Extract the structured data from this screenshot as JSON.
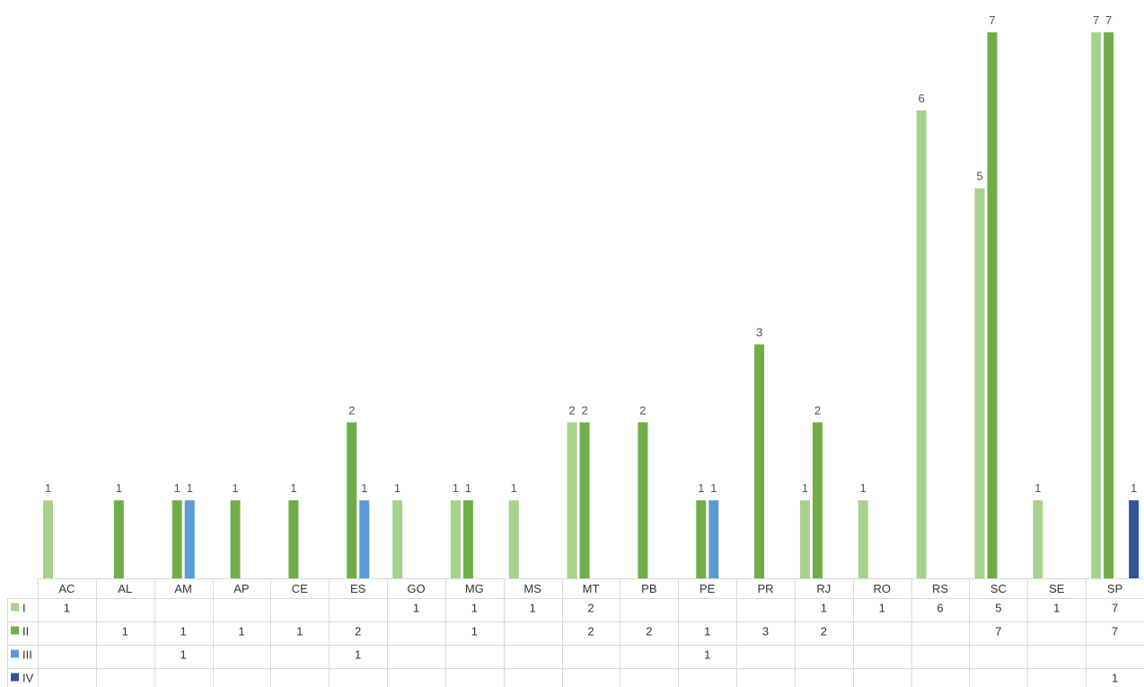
{
  "chart_data": {
    "type": "bar",
    "title": "",
    "xlabel": "",
    "ylabel": "",
    "ylim": [
      0,
      7
    ],
    "grid": false,
    "legend": "data-table-left",
    "categories": [
      "AC",
      "AL",
      "AM",
      "AP",
      "CE",
      "ES",
      "GO",
      "MG",
      "MS",
      "MT",
      "PB",
      "PE",
      "PR",
      "RJ",
      "RO",
      "RS",
      "SC",
      "SE",
      "SP"
    ],
    "series": [
      {
        "name": "I",
        "color": "#a9d18e",
        "values": [
          1,
          null,
          null,
          null,
          null,
          null,
          1,
          1,
          1,
          2,
          null,
          null,
          null,
          1,
          1,
          6,
          5,
          1,
          7
        ]
      },
      {
        "name": "II",
        "color": "#70ad47",
        "values": [
          null,
          1,
          1,
          1,
          1,
          2,
          null,
          1,
          null,
          2,
          2,
          1,
          3,
          2,
          null,
          null,
          7,
          null,
          7
        ]
      },
      {
        "name": "III",
        "color": "#5b9bd5",
        "values": [
          null,
          null,
          1,
          null,
          null,
          1,
          null,
          null,
          null,
          null,
          null,
          1,
          null,
          null,
          null,
          null,
          null,
          null,
          null
        ]
      },
      {
        "name": "IV",
        "color": "#2f5597",
        "values": [
          null,
          null,
          null,
          null,
          null,
          null,
          null,
          null,
          null,
          null,
          null,
          null,
          null,
          null,
          null,
          null,
          null,
          null,
          1
        ]
      }
    ]
  }
}
